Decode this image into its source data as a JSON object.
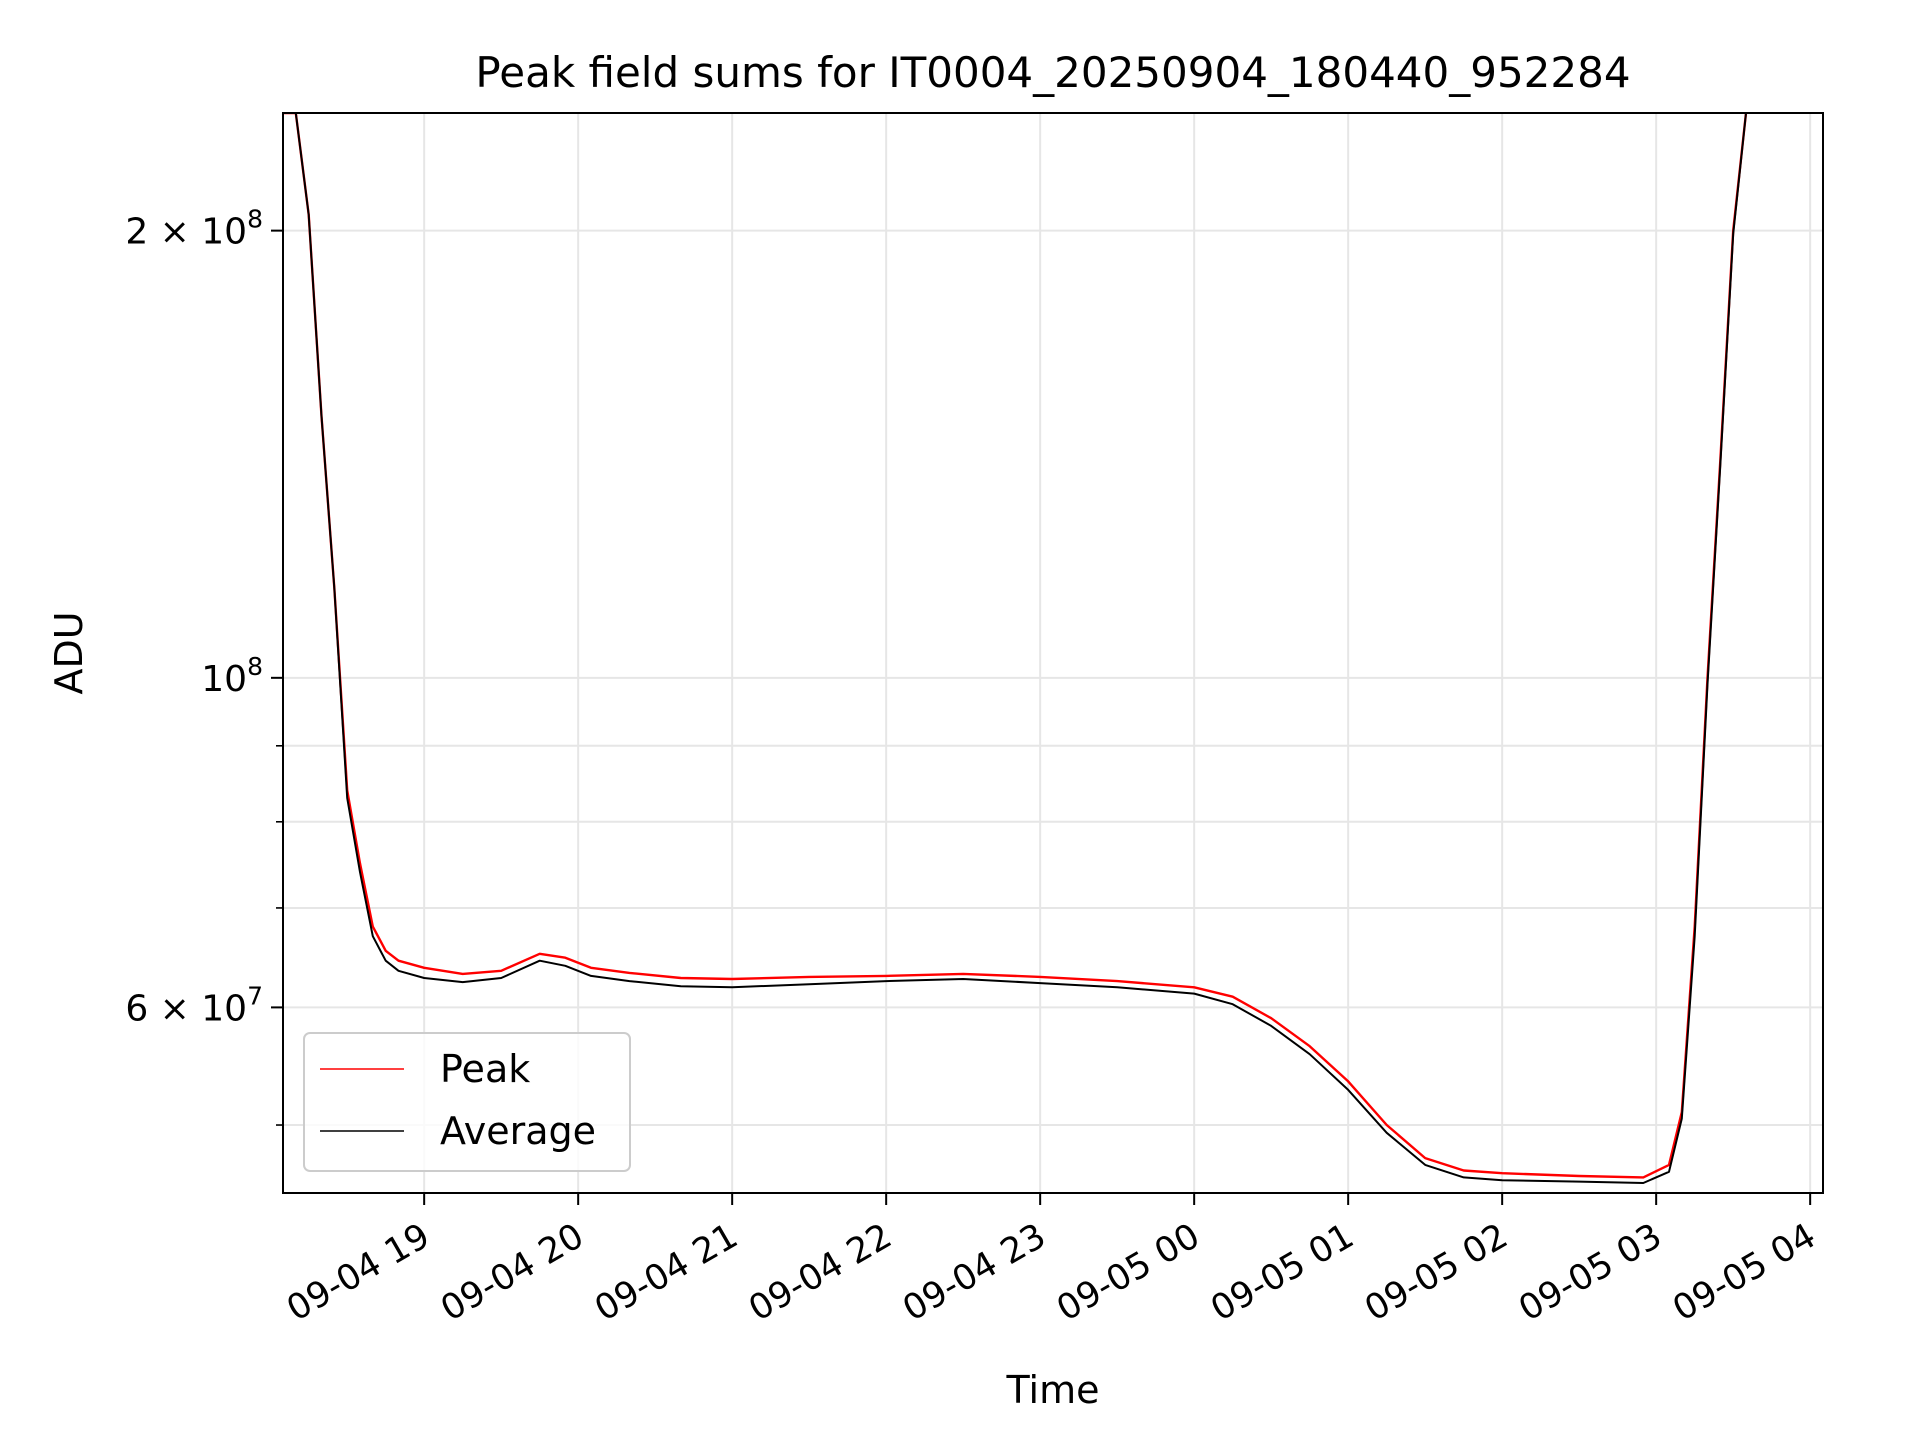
{
  "chart_data": {
    "type": "line",
    "title": "Peak field sums for IT0004_20250904_180440_952284",
    "xlabel": "Time",
    "ylabel": "ADU",
    "y_scale": "log",
    "ylim": [
      45000000,
      240000000
    ],
    "xlim": [
      "2025-09-04 18:05",
      "2025-09-05 04:05"
    ],
    "grid": true,
    "legend_position": "lower-left",
    "x_ticks": [
      {
        "value": "2025-09-04 19:00",
        "label": "09-04 19"
      },
      {
        "value": "2025-09-04 20:00",
        "label": "09-04 20"
      },
      {
        "value": "2025-09-04 21:00",
        "label": "09-04 21"
      },
      {
        "value": "2025-09-04 22:00",
        "label": "09-04 22"
      },
      {
        "value": "2025-09-04 23:00",
        "label": "09-04 23"
      },
      {
        "value": "2025-09-05 00:00",
        "label": "09-05 00"
      },
      {
        "value": "2025-09-05 01:00",
        "label": "09-05 01"
      },
      {
        "value": "2025-09-05 02:00",
        "label": "09-05 02"
      },
      {
        "value": "2025-09-05 03:00",
        "label": "09-05 03"
      },
      {
        "value": "2025-09-05 04:00",
        "label": "09-05 04"
      }
    ],
    "y_major_ticks": [
      {
        "value": 100000000,
        "mantissa": "",
        "base": "10",
        "exp": "8"
      },
      {
        "value": 200000000,
        "mantissa": "2 × ",
        "base": "10",
        "exp": "8"
      },
      {
        "value": 60000000,
        "mantissa": "6 × ",
        "base": "10",
        "exp": "7"
      }
    ],
    "y_minor_ticks": [
      50000000,
      70000000,
      80000000,
      90000000
    ],
    "series": [
      {
        "name": "Peak",
        "color": "#ff0000",
        "points": [
          [
            "2025-09-04 18:05",
            240000000
          ],
          [
            "2025-09-04 18:10",
            240000000
          ],
          [
            "2025-09-04 18:15",
            205000000
          ],
          [
            "2025-09-04 18:20",
            150000000
          ],
          [
            "2025-09-04 18:25",
            115000000
          ],
          [
            "2025-09-04 18:30",
            84000000
          ],
          [
            "2025-09-04 18:35",
            75000000
          ],
          [
            "2025-09-04 18:40",
            68000000
          ],
          [
            "2025-09-04 18:45",
            65500000
          ],
          [
            "2025-09-04 18:50",
            64500000
          ],
          [
            "2025-09-04 19:00",
            63800000
          ],
          [
            "2025-09-04 19:15",
            63200000
          ],
          [
            "2025-09-04 19:30",
            63500000
          ],
          [
            "2025-09-04 19:45",
            65200000
          ],
          [
            "2025-09-04 19:55",
            64800000
          ],
          [
            "2025-09-04 20:05",
            63800000
          ],
          [
            "2025-09-04 20:20",
            63300000
          ],
          [
            "2025-09-04 20:40",
            62800000
          ],
          [
            "2025-09-04 21:00",
            62700000
          ],
          [
            "2025-09-04 21:30",
            62900000
          ],
          [
            "2025-09-04 22:00",
            63000000
          ],
          [
            "2025-09-04 22:30",
            63200000
          ],
          [
            "2025-09-04 23:00",
            62900000
          ],
          [
            "2025-09-04 23:30",
            62500000
          ],
          [
            "2025-09-05 00:00",
            61900000
          ],
          [
            "2025-09-05 00:15",
            61000000
          ],
          [
            "2025-09-05 00:30",
            59000000
          ],
          [
            "2025-09-05 00:45",
            56500000
          ],
          [
            "2025-09-05 01:00",
            53500000
          ],
          [
            "2025-09-05 01:15",
            50000000
          ],
          [
            "2025-09-05 01:30",
            47500000
          ],
          [
            "2025-09-05 01:45",
            46600000
          ],
          [
            "2025-09-05 02:00",
            46400000
          ],
          [
            "2025-09-05 02:30",
            46200000
          ],
          [
            "2025-09-05 02:55",
            46100000
          ],
          [
            "2025-09-05 03:05",
            47000000
          ],
          [
            "2025-09-05 03:10",
            51000000
          ],
          [
            "2025-09-05 03:15",
            68000000
          ],
          [
            "2025-09-05 03:20",
            100000000
          ],
          [
            "2025-09-05 03:25",
            140000000
          ],
          [
            "2025-09-05 03:30",
            200000000
          ],
          [
            "2025-09-05 03:35",
            240000000
          ]
        ]
      },
      {
        "name": "Average",
        "color": "#000000",
        "points": [
          [
            "2025-09-04 18:05",
            240000000
          ],
          [
            "2025-09-04 18:10",
            240000000
          ],
          [
            "2025-09-04 18:15",
            205000000
          ],
          [
            "2025-09-04 18:20",
            150000000
          ],
          [
            "2025-09-04 18:25",
            115000000
          ],
          [
            "2025-09-04 18:30",
            83000000
          ],
          [
            "2025-09-04 18:35",
            74000000
          ],
          [
            "2025-09-04 18:40",
            67000000
          ],
          [
            "2025-09-04 18:45",
            64500000
          ],
          [
            "2025-09-04 18:50",
            63500000
          ],
          [
            "2025-09-04 19:00",
            62800000
          ],
          [
            "2025-09-04 19:15",
            62400000
          ],
          [
            "2025-09-04 19:30",
            62800000
          ],
          [
            "2025-09-04 19:45",
            64500000
          ],
          [
            "2025-09-04 19:55",
            64000000
          ],
          [
            "2025-09-04 20:05",
            63000000
          ],
          [
            "2025-09-04 20:20",
            62500000
          ],
          [
            "2025-09-04 20:40",
            62000000
          ],
          [
            "2025-09-04 21:00",
            61900000
          ],
          [
            "2025-09-04 21:30",
            62200000
          ],
          [
            "2025-09-04 22:00",
            62500000
          ],
          [
            "2025-09-04 22:30",
            62700000
          ],
          [
            "2025-09-04 23:00",
            62300000
          ],
          [
            "2025-09-04 23:30",
            61900000
          ],
          [
            "2025-09-05 00:00",
            61300000
          ],
          [
            "2025-09-05 00:15",
            60300000
          ],
          [
            "2025-09-05 00:30",
            58300000
          ],
          [
            "2025-09-05 00:45",
            55800000
          ],
          [
            "2025-09-05 01:00",
            52800000
          ],
          [
            "2025-09-05 01:15",
            49400000
          ],
          [
            "2025-09-05 01:30",
            47000000
          ],
          [
            "2025-09-05 01:45",
            46100000
          ],
          [
            "2025-09-05 02:00",
            45900000
          ],
          [
            "2025-09-05 02:30",
            45800000
          ],
          [
            "2025-09-05 02:55",
            45700000
          ],
          [
            "2025-09-05 03:05",
            46500000
          ],
          [
            "2025-09-05 03:10",
            50500000
          ],
          [
            "2025-09-05 03:15",
            67000000
          ],
          [
            "2025-09-05 03:20",
            99000000
          ],
          [
            "2025-09-05 03:25",
            139000000
          ],
          [
            "2025-09-05 03:30",
            199000000
          ],
          [
            "2025-09-05 03:35",
            240000000
          ]
        ]
      }
    ]
  }
}
